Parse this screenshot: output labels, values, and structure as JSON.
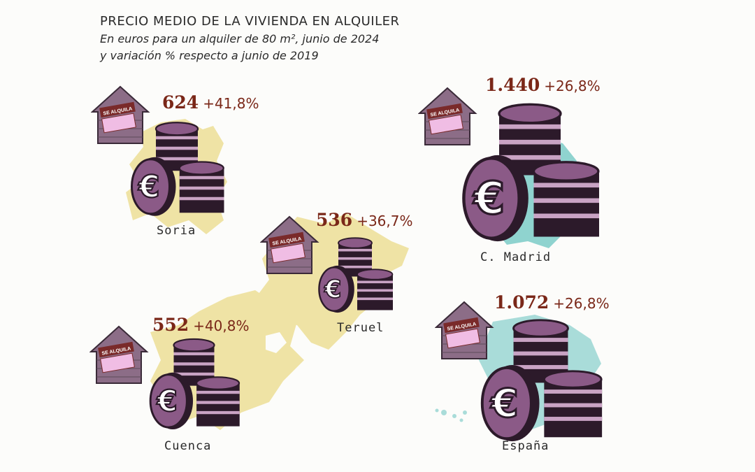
{
  "header": {
    "title": "PRECIO MEDIO DE LA VIVIENDA EN ALQUILER",
    "subtitle_1": "En euros para un alquiler de 80 m², junio de 2024",
    "subtitle_2": "y variación % respecto a junio de 2019"
  },
  "sign_text": "SE ALQUILA",
  "colors": {
    "province_fill": "#efe3a5",
    "madrid_fill": "#8fd3cf",
    "spain_fill": "#a9dcd9",
    "coin_purple": "#8b5a87",
    "coin_dark": "#2c1a2a",
    "value_text": "#7a2718",
    "brick": "#8c6d87"
  },
  "chart_data": {
    "type": "table",
    "title": "PRECIO MEDIO DE LA VIVIENDA EN ALQUILER",
    "subtitle": "En euros para un alquiler de 80 m², junio de 2024 y variación % respecto a junio de 2019",
    "columns": [
      "region",
      "price_eur",
      "change_pct"
    ],
    "rows": [
      {
        "region": "Soria",
        "price": "624",
        "change": "+41,8%",
        "price_value": 624,
        "change_value": 41.8
      },
      {
        "region": "Teruel",
        "price": "536",
        "change": "+36,7%",
        "price_value": 536,
        "change_value": 36.7
      },
      {
        "region": "Cuenca",
        "price": "552",
        "change": "+40,8%",
        "price_value": 552,
        "change_value": 40.8
      },
      {
        "region": "C. Madrid",
        "price": "1.440",
        "change": "+26,8%",
        "price_value": 1440,
        "change_value": 26.8
      },
      {
        "region": "España",
        "price": "1.072",
        "change": "+26,8%",
        "price_value": 1072,
        "change_value": 26.8
      }
    ]
  }
}
